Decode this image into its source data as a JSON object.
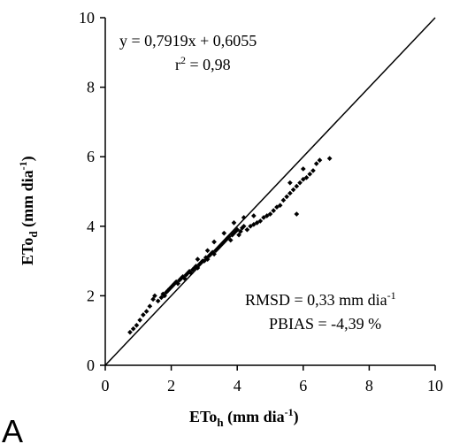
{
  "chart_data": {
    "type": "scatter",
    "xlim": [
      0,
      10
    ],
    "ylim": [
      0,
      10
    ],
    "x_ticks": [
      "0",
      "2",
      "4",
      "6",
      "8",
      "10"
    ],
    "y_ticks": [
      "0",
      "2",
      "4",
      "6",
      "8",
      "10"
    ],
    "xlabel": {
      "main": "ETo",
      "sub": "h",
      "unit_pre": " (mm dia",
      "sup": "-1",
      "unit_post": ")"
    },
    "ylabel": {
      "main": "ETo",
      "sub": "d",
      "unit_pre": "  (mm dia",
      "sup": "-1",
      "unit_post": ")"
    },
    "equation": "y = 0,7919x + 0,6055",
    "r2": {
      "pre": "r",
      "sup": "2",
      "post": " = 0,98"
    },
    "rmsd": {
      "pre": "RMSD = 0,33 mm dia",
      "sup": "-1"
    },
    "pbias": "PBIAS = -4,39 %",
    "panel_label": "A",
    "reference_line": [
      [
        0,
        0
      ],
      [
        10,
        10
      ]
    ],
    "points": [
      [
        0.75,
        0.95
      ],
      [
        0.85,
        1.05
      ],
      [
        0.95,
        1.15
      ],
      [
        1.05,
        1.3
      ],
      [
        1.15,
        1.45
      ],
      [
        1.25,
        1.55
      ],
      [
        1.35,
        1.7
      ],
      [
        1.45,
        1.9
      ],
      [
        1.5,
        2.0
      ],
      [
        1.6,
        1.85
      ],
      [
        1.7,
        1.95
      ],
      [
        1.75,
        2.05
      ],
      [
        1.8,
        2.0
      ],
      [
        1.85,
        2.1
      ],
      [
        1.9,
        2.15
      ],
      [
        1.95,
        2.2
      ],
      [
        2.0,
        2.25
      ],
      [
        2.05,
        2.3
      ],
      [
        2.1,
        2.35
      ],
      [
        2.15,
        2.4
      ],
      [
        2.2,
        2.35
      ],
      [
        2.25,
        2.45
      ],
      [
        2.3,
        2.5
      ],
      [
        2.35,
        2.55
      ],
      [
        2.4,
        2.5
      ],
      [
        2.45,
        2.6
      ],
      [
        2.5,
        2.65
      ],
      [
        2.55,
        2.7
      ],
      [
        2.6,
        2.65
      ],
      [
        2.65,
        2.75
      ],
      [
        2.7,
        2.8
      ],
      [
        2.75,
        2.85
      ],
      [
        2.8,
        2.8
      ],
      [
        2.85,
        2.9
      ],
      [
        2.9,
        2.95
      ],
      [
        2.95,
        3.0
      ],
      [
        3.0,
        3.0
      ],
      [
        3.05,
        3.1
      ],
      [
        3.1,
        3.05
      ],
      [
        3.15,
        3.15
      ],
      [
        3.2,
        3.2
      ],
      [
        3.25,
        3.25
      ],
      [
        3.3,
        3.2
      ],
      [
        3.35,
        3.3
      ],
      [
        3.4,
        3.35
      ],
      [
        3.45,
        3.4
      ],
      [
        3.5,
        3.45
      ],
      [
        3.55,
        3.5
      ],
      [
        3.6,
        3.55
      ],
      [
        3.65,
        3.6
      ],
      [
        3.7,
        3.65
      ],
      [
        3.75,
        3.7
      ],
      [
        3.8,
        3.6
      ],
      [
        3.85,
        3.75
      ],
      [
        3.9,
        3.8
      ],
      [
        3.95,
        3.85
      ],
      [
        4.0,
        3.9
      ],
      [
        4.05,
        3.75
      ],
      [
        4.1,
        3.85
      ],
      [
        4.15,
        3.95
      ],
      [
        4.2,
        4.0
      ],
      [
        4.3,
        3.9
      ],
      [
        4.4,
        4.0
      ],
      [
        4.5,
        4.05
      ],
      [
        4.6,
        4.1
      ],
      [
        4.7,
        4.15
      ],
      [
        4.8,
        4.25
      ],
      [
        4.9,
        4.3
      ],
      [
        5.0,
        4.35
      ],
      [
        5.1,
        4.45
      ],
      [
        5.2,
        4.55
      ],
      [
        5.3,
        4.6
      ],
      [
        5.4,
        4.75
      ],
      [
        5.5,
        4.85
      ],
      [
        5.6,
        4.95
      ],
      [
        5.7,
        5.05
      ],
      [
        5.8,
        5.15
      ],
      [
        5.9,
        5.25
      ],
      [
        6.0,
        5.35
      ],
      [
        6.1,
        5.4
      ],
      [
        6.2,
        5.5
      ],
      [
        6.3,
        5.6
      ],
      [
        6.4,
        5.8
      ],
      [
        6.5,
        5.9
      ],
      [
        6.8,
        5.95
      ],
      [
        3.3,
        3.55
      ],
      [
        3.6,
        3.8
      ],
      [
        3.9,
        4.1
      ],
      [
        4.2,
        4.25
      ],
      [
        4.5,
        4.3
      ],
      [
        2.8,
        3.05
      ],
      [
        3.1,
        3.3
      ],
      [
        5.8,
        4.35
      ],
      [
        5.6,
        5.25
      ],
      [
        6.0,
        5.65
      ]
    ]
  }
}
